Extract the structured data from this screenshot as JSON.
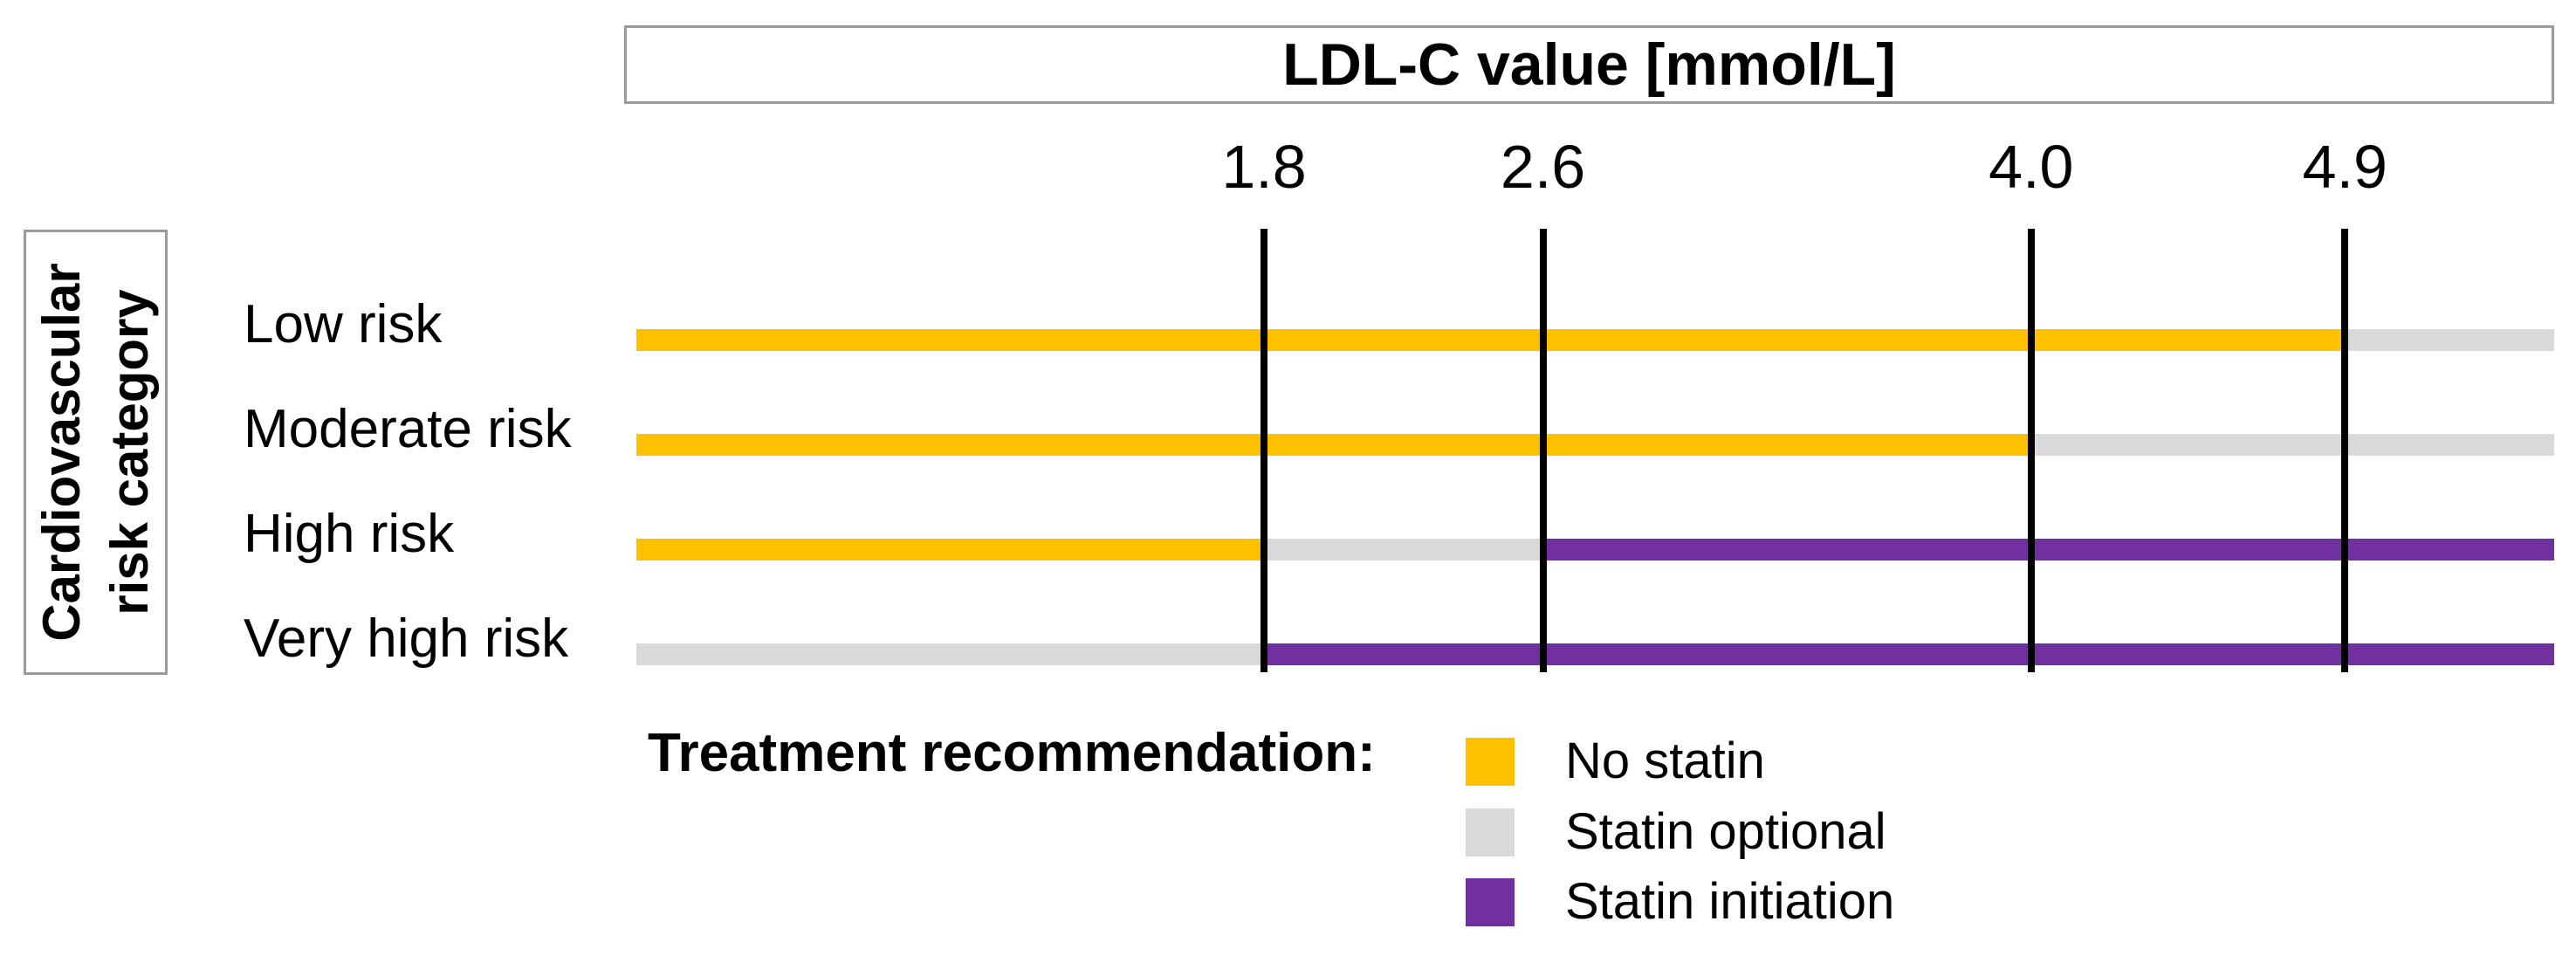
{
  "chart_data": {
    "type": "bar",
    "subtype": "categorical-range-chart",
    "orientation": "horizontal",
    "title": "LDL-C value [mmol/L]",
    "xlabel": "LDL-C value [mmol/L]",
    "ylabel": "Cardiovascular risk category",
    "ylabel_lines": [
      "Cardiovascular",
      "risk category"
    ],
    "xlim": [
      0,
      5.5
    ],
    "xticks": [
      1.8,
      2.6,
      4.0,
      4.9
    ],
    "xtick_labels": [
      "1.8",
      "2.6",
      "4.0",
      "4.9"
    ],
    "grid": false,
    "gridline_color": "#000000",
    "categories": [
      "Low risk",
      "Moderate risk",
      "High risk",
      "Very high risk"
    ],
    "treatment_colors": {
      "No statin": "#FFC000",
      "Statin optional": "#D9D9D9",
      "Statin initiation": "#7030A0"
    },
    "rows": [
      {
        "category": "Low risk",
        "segments": [
          {
            "treatment": "No statin",
            "from": 0,
            "to": 4.9
          },
          {
            "treatment": "Statin optional",
            "from": 4.9,
            "to": 5.5
          }
        ]
      },
      {
        "category": "Moderate risk",
        "segments": [
          {
            "treatment": "No statin",
            "from": 0,
            "to": 4.0
          },
          {
            "treatment": "Statin optional",
            "from": 4.0,
            "to": 5.5
          }
        ]
      },
      {
        "category": "High risk",
        "segments": [
          {
            "treatment": "No statin",
            "from": 0,
            "to": 1.8
          },
          {
            "treatment": "Statin optional",
            "from": 1.8,
            "to": 2.6
          },
          {
            "treatment": "Statin initiation",
            "from": 2.6,
            "to": 5.5
          }
        ]
      },
      {
        "category": "Very high risk",
        "segments": [
          {
            "treatment": "Statin optional",
            "from": 0,
            "to": 1.8
          },
          {
            "treatment": "Statin initiation",
            "from": 1.8,
            "to": 5.5
          }
        ]
      }
    ],
    "legend": {
      "position": "bottom-left",
      "title": "Treatment recommendation:",
      "entries": [
        {
          "label": "No statin",
          "color": "#FFC000"
        },
        {
          "label": "Statin optional",
          "color": "#D9D9D9"
        },
        {
          "label": "Statin initiation",
          "color": "#7030A0"
        }
      ]
    }
  }
}
